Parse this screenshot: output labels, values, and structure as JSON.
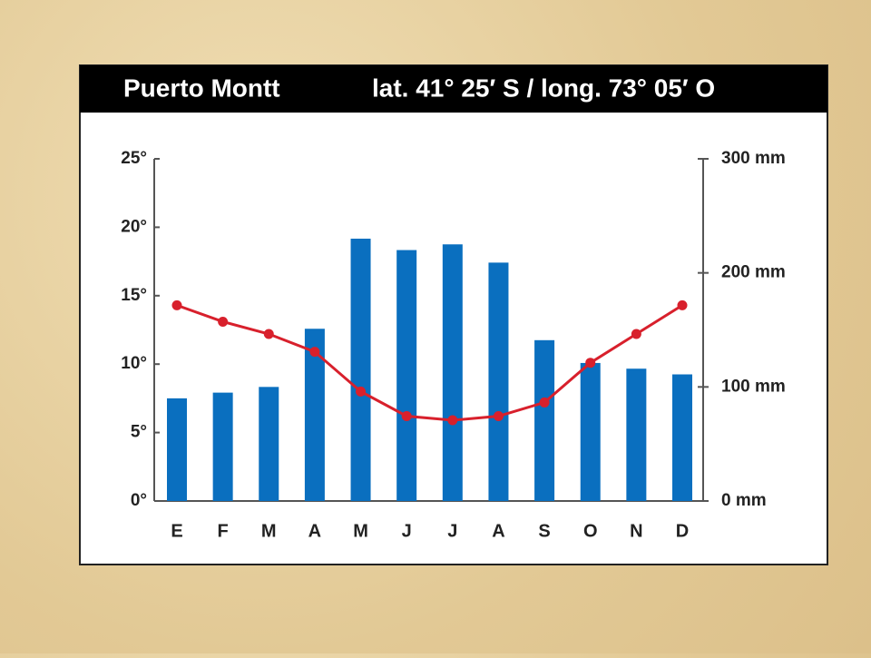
{
  "chart_data": {
    "type": "combo",
    "title": "Puerto Montt",
    "subtitle": "lat. 41° 25′ S / long. 73° 05′ O",
    "categories": [
      "E",
      "F",
      "M",
      "A",
      "M",
      "J",
      "J",
      "A",
      "S",
      "O",
      "N",
      "D"
    ],
    "series": [
      {
        "type": "bar",
        "axis": "y2",
        "color": "#0a6fbf",
        "values": [
          90,
          95,
          100,
          151,
          230,
          220,
          225,
          209,
          141,
          121,
          116,
          111
        ]
      },
      {
        "type": "line",
        "color": "#d8202c",
        "values": [
          14.3,
          13.1,
          12.2,
          10.9,
          8.0,
          6.2,
          5.9,
          6.2,
          7.2,
          10.1,
          12.2,
          14.3
        ]
      }
    ],
    "ylim": [
      0,
      25
    ],
    "yticks": [
      {
        "value": 0,
        "label": "0°"
      },
      {
        "value": 5,
        "label": "5°"
      },
      {
        "value": 10,
        "label": "10°"
      },
      {
        "value": 15,
        "label": "15°"
      },
      {
        "value": 20,
        "label": "20°"
      },
      {
        "value": 25,
        "label": "25°"
      }
    ],
    "y2lim": [
      0,
      300
    ],
    "y2ticks": [
      {
        "value": 0,
        "label": "0 mm"
      },
      {
        "value": 100,
        "label": "100 mm"
      },
      {
        "value": 200,
        "label": "200 mm"
      },
      {
        "value": 300,
        "label": "300 mm"
      }
    ],
    "grid": false
  }
}
